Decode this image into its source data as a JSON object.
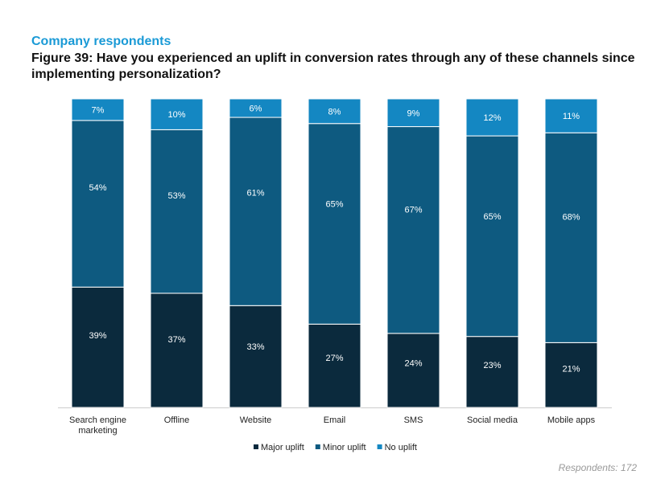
{
  "subtitle": "Company respondents",
  "title": "Figure 39: Have you experienced an uplift in conversion rates through any of these channels since implementing personalization?",
  "footnote": "Respondents: 172",
  "chart_data": {
    "type": "bar",
    "stacked": true,
    "categories": [
      "Search engine marketing",
      "Offline",
      "Website",
      "Email",
      "SMS",
      "Social media",
      "Mobile apps"
    ],
    "series": [
      {
        "name": "Major uplift",
        "color": "#0b2a3d",
        "values": [
          39,
          37,
          33,
          27,
          24,
          23,
          21
        ]
      },
      {
        "name": "Minor uplift",
        "color": "#0e5a80",
        "values": [
          54,
          53,
          61,
          65,
          67,
          65,
          68
        ]
      },
      {
        "name": "No uplift",
        "color": "#1487c2",
        "values": [
          7,
          10,
          6,
          8,
          9,
          12,
          11
        ]
      }
    ],
    "value_suffix": "%",
    "legend_position": "bottom",
    "grid": false
  }
}
